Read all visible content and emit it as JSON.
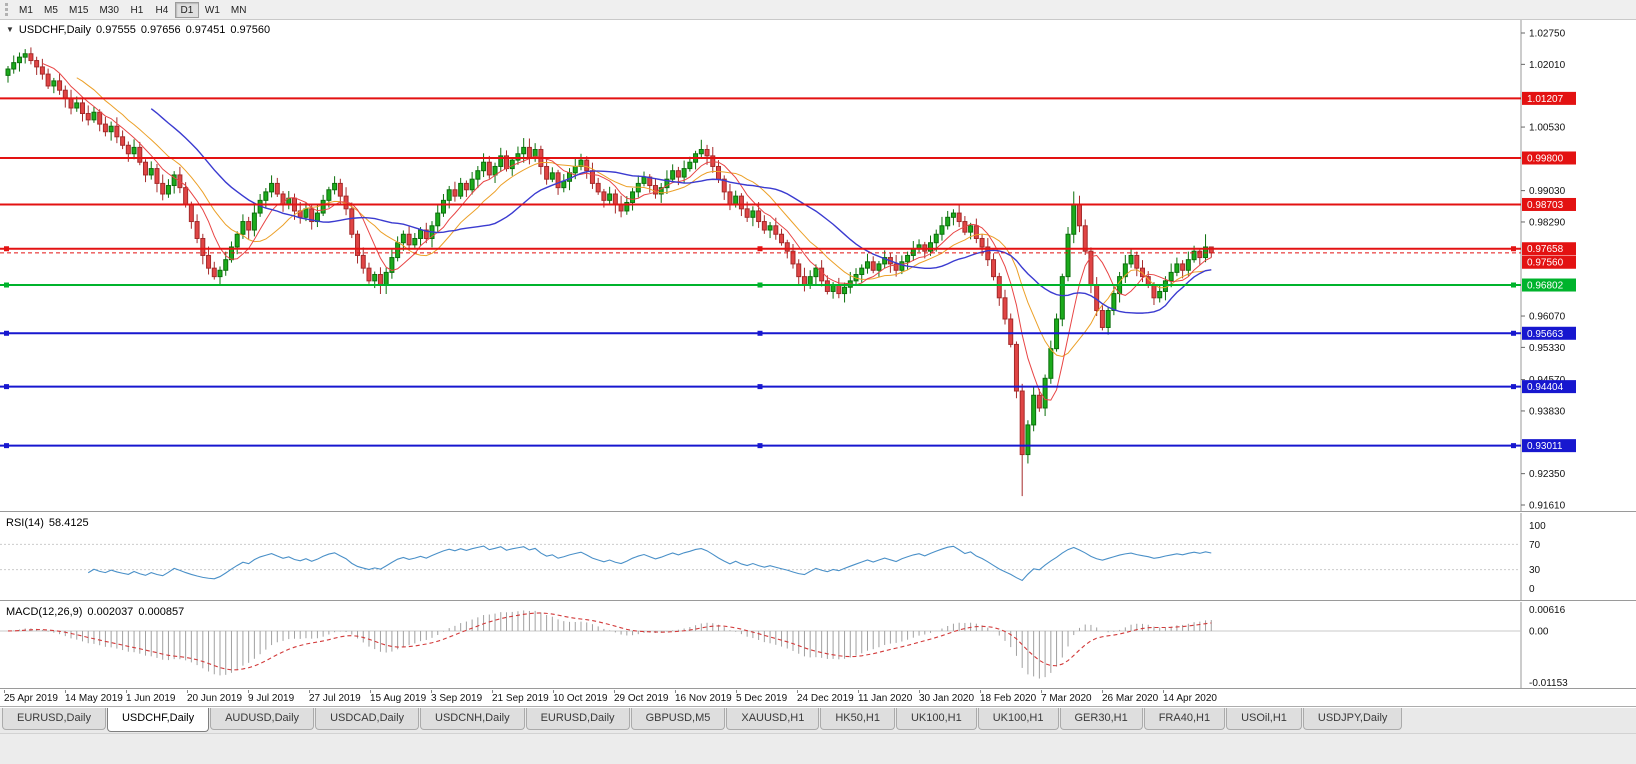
{
  "toolbar": {
    "timeframes": [
      {
        "label": "M1",
        "active": false
      },
      {
        "label": "M5",
        "active": false
      },
      {
        "label": "M15",
        "active": false
      },
      {
        "label": "M30",
        "active": false
      },
      {
        "label": "H1",
        "active": false
      },
      {
        "label": "H4",
        "active": false
      },
      {
        "label": "D1",
        "active": true
      },
      {
        "label": "W1",
        "active": false
      },
      {
        "label": "MN",
        "active": false
      }
    ]
  },
  "header": {
    "dropdown_icon": "▼",
    "symbol": "USDCHF,Daily",
    "open": "0.97555",
    "high": "0.97656",
    "low": "0.97451",
    "close": "0.97560"
  },
  "chart_data": {
    "type": "candlestick",
    "symbol": "USDCHF",
    "timeframe": "Daily",
    "x_labels": [
      "25 Apr 2019",
      "14 May 2019",
      "1 Jun 2019",
      "20 Jun 2019",
      "9 Jul 2019",
      "27 Jul 2019",
      "15 Aug 2019",
      "3 Sep 2019",
      "21 Sep 2019",
      "10 Oct 2019",
      "29 Oct 2019",
      "16 Nov 2019",
      "5 Dec 2019",
      "24 Dec 2019",
      "11 Jan 2020",
      "30 Jan 2020",
      "18 Feb 2020",
      "7 Mar 2020",
      "26 Mar 2020",
      "14 Apr 2020"
    ],
    "y_axis": {
      "max": 1.0275,
      "min": 0.9161,
      "ticks": [
        "1.02750",
        "1.02010",
        "1.00530",
        "0.99030",
        "0.98290",
        "0.96070",
        "0.95330",
        "0.94570",
        "0.93830",
        "0.92350",
        "0.91610"
      ]
    },
    "candles": {
      "first_open": 1.0175,
      "colors": {
        "up": "#1cab1c",
        "up_edge": "#0b6f0b",
        "down": "#e04545",
        "down_edge": "#a52a2a"
      },
      "closes": [
        1.019,
        1.0205,
        1.0218,
        1.0226,
        1.021,
        1.0195,
        1.0178,
        1.015,
        1.0162,
        1.014,
        1.012,
        1.0098,
        1.011,
        1.0085,
        1.007,
        1.0088,
        1.006,
        1.0042,
        1.0055,
        1.003,
        1.001,
        0.999,
        1.0005,
        0.997,
        0.994,
        0.9955,
        0.992,
        0.9895,
        0.9915,
        0.994,
        0.991,
        0.987,
        0.983,
        0.979,
        0.975,
        0.972,
        0.97,
        0.9715,
        0.974,
        0.977,
        0.98,
        0.983,
        0.981,
        0.985,
        0.988,
        0.99,
        0.992,
        0.9895,
        0.987,
        0.9885,
        0.9855,
        0.984,
        0.986,
        0.983,
        0.985,
        0.988,
        0.9905,
        0.992,
        0.989,
        0.986,
        0.98,
        0.975,
        0.972,
        0.969,
        0.9705,
        0.968,
        0.971,
        0.9745,
        0.978,
        0.98,
        0.9775,
        0.979,
        0.981,
        0.979,
        0.982,
        0.985,
        0.988,
        0.9905,
        0.989,
        0.992,
        0.9905,
        0.993,
        0.995,
        0.997,
        0.994,
        0.996,
        0.9985,
        0.9955,
        0.9975,
        0.999,
        1.0005,
        0.998,
        1.0,
        0.996,
        0.993,
        0.9945,
        0.991,
        0.9925,
        0.9945,
        0.996,
        0.9975,
        0.995,
        0.992,
        0.99,
        0.988,
        0.9895,
        0.987,
        0.9855,
        0.9875,
        0.99,
        0.992,
        0.9935,
        0.9915,
        0.9895,
        0.991,
        0.993,
        0.995,
        0.9935,
        0.9955,
        0.997,
        0.999,
        1.0,
        0.9985,
        0.996,
        0.993,
        0.99,
        0.987,
        0.989,
        0.986,
        0.984,
        0.9855,
        0.983,
        0.981,
        0.982,
        0.98,
        0.978,
        0.976,
        0.973,
        0.97,
        0.968,
        0.97,
        0.972,
        0.969,
        0.9665,
        0.968,
        0.966,
        0.9675,
        0.969,
        0.9705,
        0.972,
        0.9735,
        0.9715,
        0.973,
        0.9745,
        0.973,
        0.9715,
        0.9735,
        0.975,
        0.9765,
        0.9775,
        0.976,
        0.978,
        0.98,
        0.982,
        0.984,
        0.985,
        0.983,
        0.9805,
        0.982,
        0.979,
        0.977,
        0.974,
        0.97,
        0.965,
        0.96,
        0.954,
        0.943,
        0.928,
        0.935,
        0.942,
        0.939,
        0.946,
        0.953,
        0.96,
        0.97,
        0.98,
        0.987,
        0.982,
        0.976,
        0.968,
        0.962,
        0.958,
        0.962,
        0.966,
        0.97,
        0.973,
        0.975,
        0.972,
        0.97,
        0.968,
        0.965,
        0.9665,
        0.969,
        0.971,
        0.973,
        0.9715,
        0.974,
        0.976,
        0.9745,
        0.977,
        0.9756
      ],
      "wick_overrides": [
        {
          "i": 3,
          "h": 1.0237
        },
        {
          "i": 36,
          "l": 0.9693
        },
        {
          "i": 65,
          "l": 0.9659
        },
        {
          "i": 90,
          "h": 1.0027
        },
        {
          "i": 121,
          "h": 1.0023
        },
        {
          "i": 177,
          "l": 0.9182
        },
        {
          "i": 186,
          "h": 0.9901
        },
        {
          "i": 209,
          "h": 0.98
        },
        {
          "i": 210,
          "h": 0.9766,
          "l": 0.9745
        }
      ]
    },
    "overlays": {
      "ma_fast_color": "#e84545",
      "ma_mid_color": "#eca028",
      "ma_slow_color": "#3b3bd0"
    },
    "hlines": [
      {
        "price": 1.01207,
        "label": "1.01207",
        "color": "#e31212",
        "width": 2,
        "handles": false
      },
      {
        "price": 0.998,
        "label": "0.99800",
        "color": "#e31212",
        "width": 2,
        "handles": false
      },
      {
        "price": 0.98703,
        "label": "0.98703",
        "color": "#e31212",
        "width": 2,
        "handles": false
      },
      {
        "price": 0.97658,
        "label": "0.97658",
        "color": "#e31212",
        "width": 2,
        "handles": true
      },
      {
        "price": 0.96802,
        "label": "0.96802",
        "color": "#00b32c",
        "width": 2,
        "handles": true
      },
      {
        "price": 0.95663,
        "label": "0.95663",
        "color": "#1717cf",
        "width": 2,
        "handles": true
      },
      {
        "price": 0.94404,
        "label": "0.94404",
        "color": "#1717cf",
        "width": 2,
        "handles": true
      },
      {
        "price": 0.93011,
        "label": "0.93011",
        "color": "#1717cf",
        "width": 2,
        "handles": true
      }
    ],
    "current_price": {
      "price": 0.9756,
      "label": "0.97560",
      "color": "#e31212"
    },
    "indicators": {
      "rsi": {
        "label": "RSI(14)",
        "value": "58.4125",
        "color": "#4a90c8",
        "levels": [
          70,
          30
        ],
        "axis_labels": [
          "100",
          "70",
          "30",
          "0"
        ]
      },
      "macd": {
        "label": "MACD(12,26,9)",
        "value_main": "0.002037",
        "value_signal": "0.000857",
        "signal_color": "#d23a3a",
        "histogram_color": "#a0a0a0",
        "axis_labels": [
          "0.00616",
          "0.00",
          "-0.01153"
        ]
      }
    }
  },
  "tabbar": {
    "tabs": [
      {
        "label": "EURUSD,Daily",
        "active": false
      },
      {
        "label": "USDCHF,Daily",
        "active": true
      },
      {
        "label": "AUDUSD,Daily",
        "active": false
      },
      {
        "label": "USDCAD,Daily",
        "active": false
      },
      {
        "label": "USDCNH,Daily",
        "active": false
      },
      {
        "label": "EURUSD,Daily",
        "active": false
      },
      {
        "label": "GBPUSD,M5",
        "active": false
      },
      {
        "label": "XAUUSD,H1",
        "active": false
      },
      {
        "label": "HK50,H1",
        "active": false
      },
      {
        "label": "UK100,H1",
        "active": false
      },
      {
        "label": "UK100,H1",
        "active": false
      },
      {
        "label": "GER30,H1",
        "active": false
      },
      {
        "label": "FRA40,H1",
        "active": false
      },
      {
        "label": "USOil,H1",
        "active": false
      },
      {
        "label": "USDJPY,Daily",
        "active": false
      }
    ]
  }
}
